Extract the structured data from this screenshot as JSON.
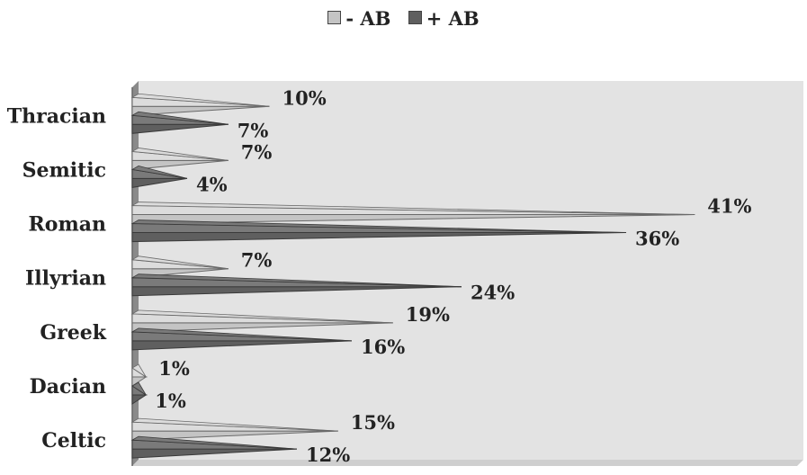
{
  "chart_data": {
    "type": "bar",
    "orientation": "horizontal",
    "categories": [
      "Thracian",
      "Semitic",
      "Roman",
      "Illyrian",
      "Greek",
      "Dacian",
      "Celtic"
    ],
    "series": [
      {
        "name": "- AB",
        "values": [
          10,
          7,
          41,
          7,
          19,
          1,
          15
        ],
        "color": "#c4c4c4"
      },
      {
        "name": "+ AB",
        "values": [
          7,
          4,
          36,
          24,
          16,
          1,
          12
        ],
        "color": "#5f5f5f"
      }
    ],
    "value_suffix": "%",
    "xlim": [
      0,
      45
    ],
    "legend_position": "top-center",
    "grid": false
  }
}
